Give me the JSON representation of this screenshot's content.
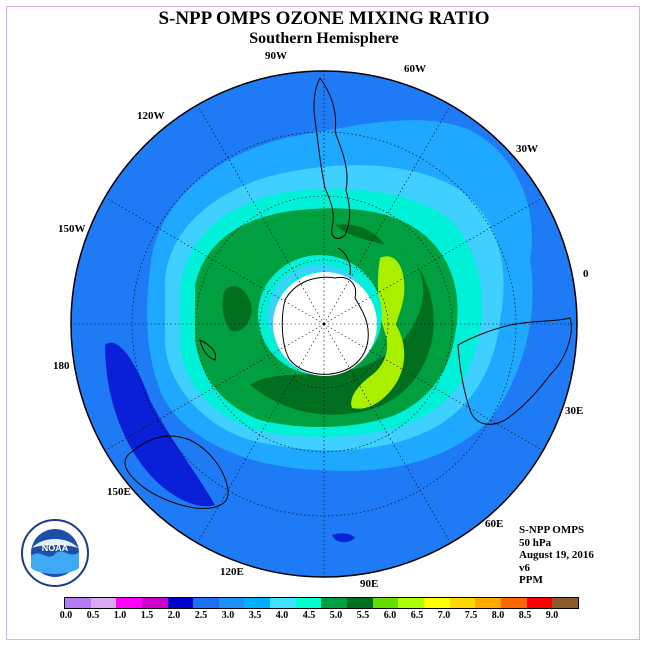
{
  "title": "S-NPP OMPS OZONE MIXING RATIO",
  "subtitle": "Southern Hemisphere",
  "longitude_labels": {
    "lon_90w": "90W",
    "lon_60w": "60W",
    "lon_120w": "120W",
    "lon_30w": "30W",
    "lon_150w": "150W",
    "lon_0": "0",
    "lon_180": "180",
    "lon_30e": "30E",
    "lon_150e": "150E",
    "lon_60e": "60E",
    "lon_120e": "120E",
    "lon_90e": "90E"
  },
  "info": {
    "instrument": "S-NPP OMPS",
    "level": "50 hPa",
    "date": "August 19, 2016",
    "version": "v6",
    "units": "PPM"
  },
  "colorbar": {
    "colors": [
      "#b57bf0",
      "#d8a8f0",
      "#ff00ff",
      "#cc00cc",
      "#0000cd",
      "#1e6ef5",
      "#1e90ff",
      "#00b0ff",
      "#40e0ff",
      "#00ffd0",
      "#00a040",
      "#007020",
      "#66dd00",
      "#aaff00",
      "#ffff00",
      "#ffd700",
      "#ffaa00",
      "#ff6600",
      "#ff0000",
      "#8b5a2b"
    ],
    "ticks": [
      "0.0",
      "0.5",
      "1.0",
      "1.5",
      "2.0",
      "2.5",
      "3.0",
      "3.5",
      "4.0",
      "4.5",
      "5.0",
      "5.5",
      "6.0",
      "6.5",
      "7.0",
      "7.5",
      "8.0",
      "8.5",
      "9.0"
    ]
  },
  "field_colors": {
    "background_2_5": "#1e7bf5",
    "band_2_0": "#0a1fd8",
    "band_3_0": "#1ea8ff",
    "band_3_5": "#40d0ff",
    "band_4_0": "#00f0d8",
    "band_4_5": "#00a040",
    "band_5_0": "#007020",
    "band_5_5": "#aaee00"
  },
  "logo": {
    "text": "NOAA"
  }
}
